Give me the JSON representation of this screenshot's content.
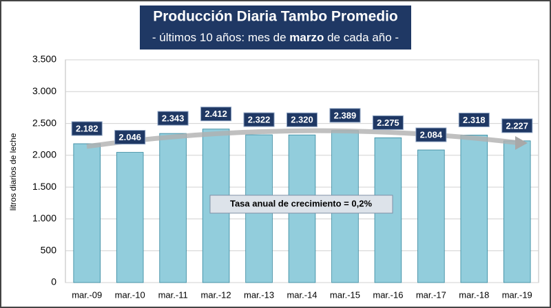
{
  "chart_data": {
    "type": "bar",
    "title": "Producción Diaria Tambo Promedio",
    "subtitle_parts": [
      "- últimos 10 años: mes de ",
      "marzo",
      " de cada año -"
    ],
    "y_axis_label": "litros diarios de leche",
    "annotation": "Tasa anual de crecimiento = 0,2%",
    "categories": [
      "mar.-09",
      "mar.-10",
      "mar.-11",
      "mar.-12",
      "mar.-13",
      "mar.-14",
      "mar.-15",
      "mar.-16",
      "mar.-17",
      "mar.-18",
      "mar.-19"
    ],
    "values": [
      2182,
      2046,
      2343,
      2412,
      2322,
      2320,
      2389,
      2275,
      2084,
      2318,
      2227
    ],
    "value_labels": [
      "2.182",
      "2.046",
      "2.343",
      "2.412",
      "2.322",
      "2.320",
      "2.389",
      "2.275",
      "2.084",
      "2.318",
      "2.227"
    ],
    "color": "#92cddc",
    "ylim": [
      0,
      3500
    ],
    "yticks": [
      0,
      500,
      {
        "value": 1000,
        "label": "1.000"
      },
      {
        "value": 1500,
        "label": "1.500"
      },
      {
        "value": 2000,
        "label": "2.000"
      },
      {
        "value": 2500,
        "label": "2.500"
      },
      {
        "value": 3000,
        "label": "3.000"
      },
      {
        "value": 3500,
        "label": "3.500"
      }
    ],
    "grid": true
  }
}
